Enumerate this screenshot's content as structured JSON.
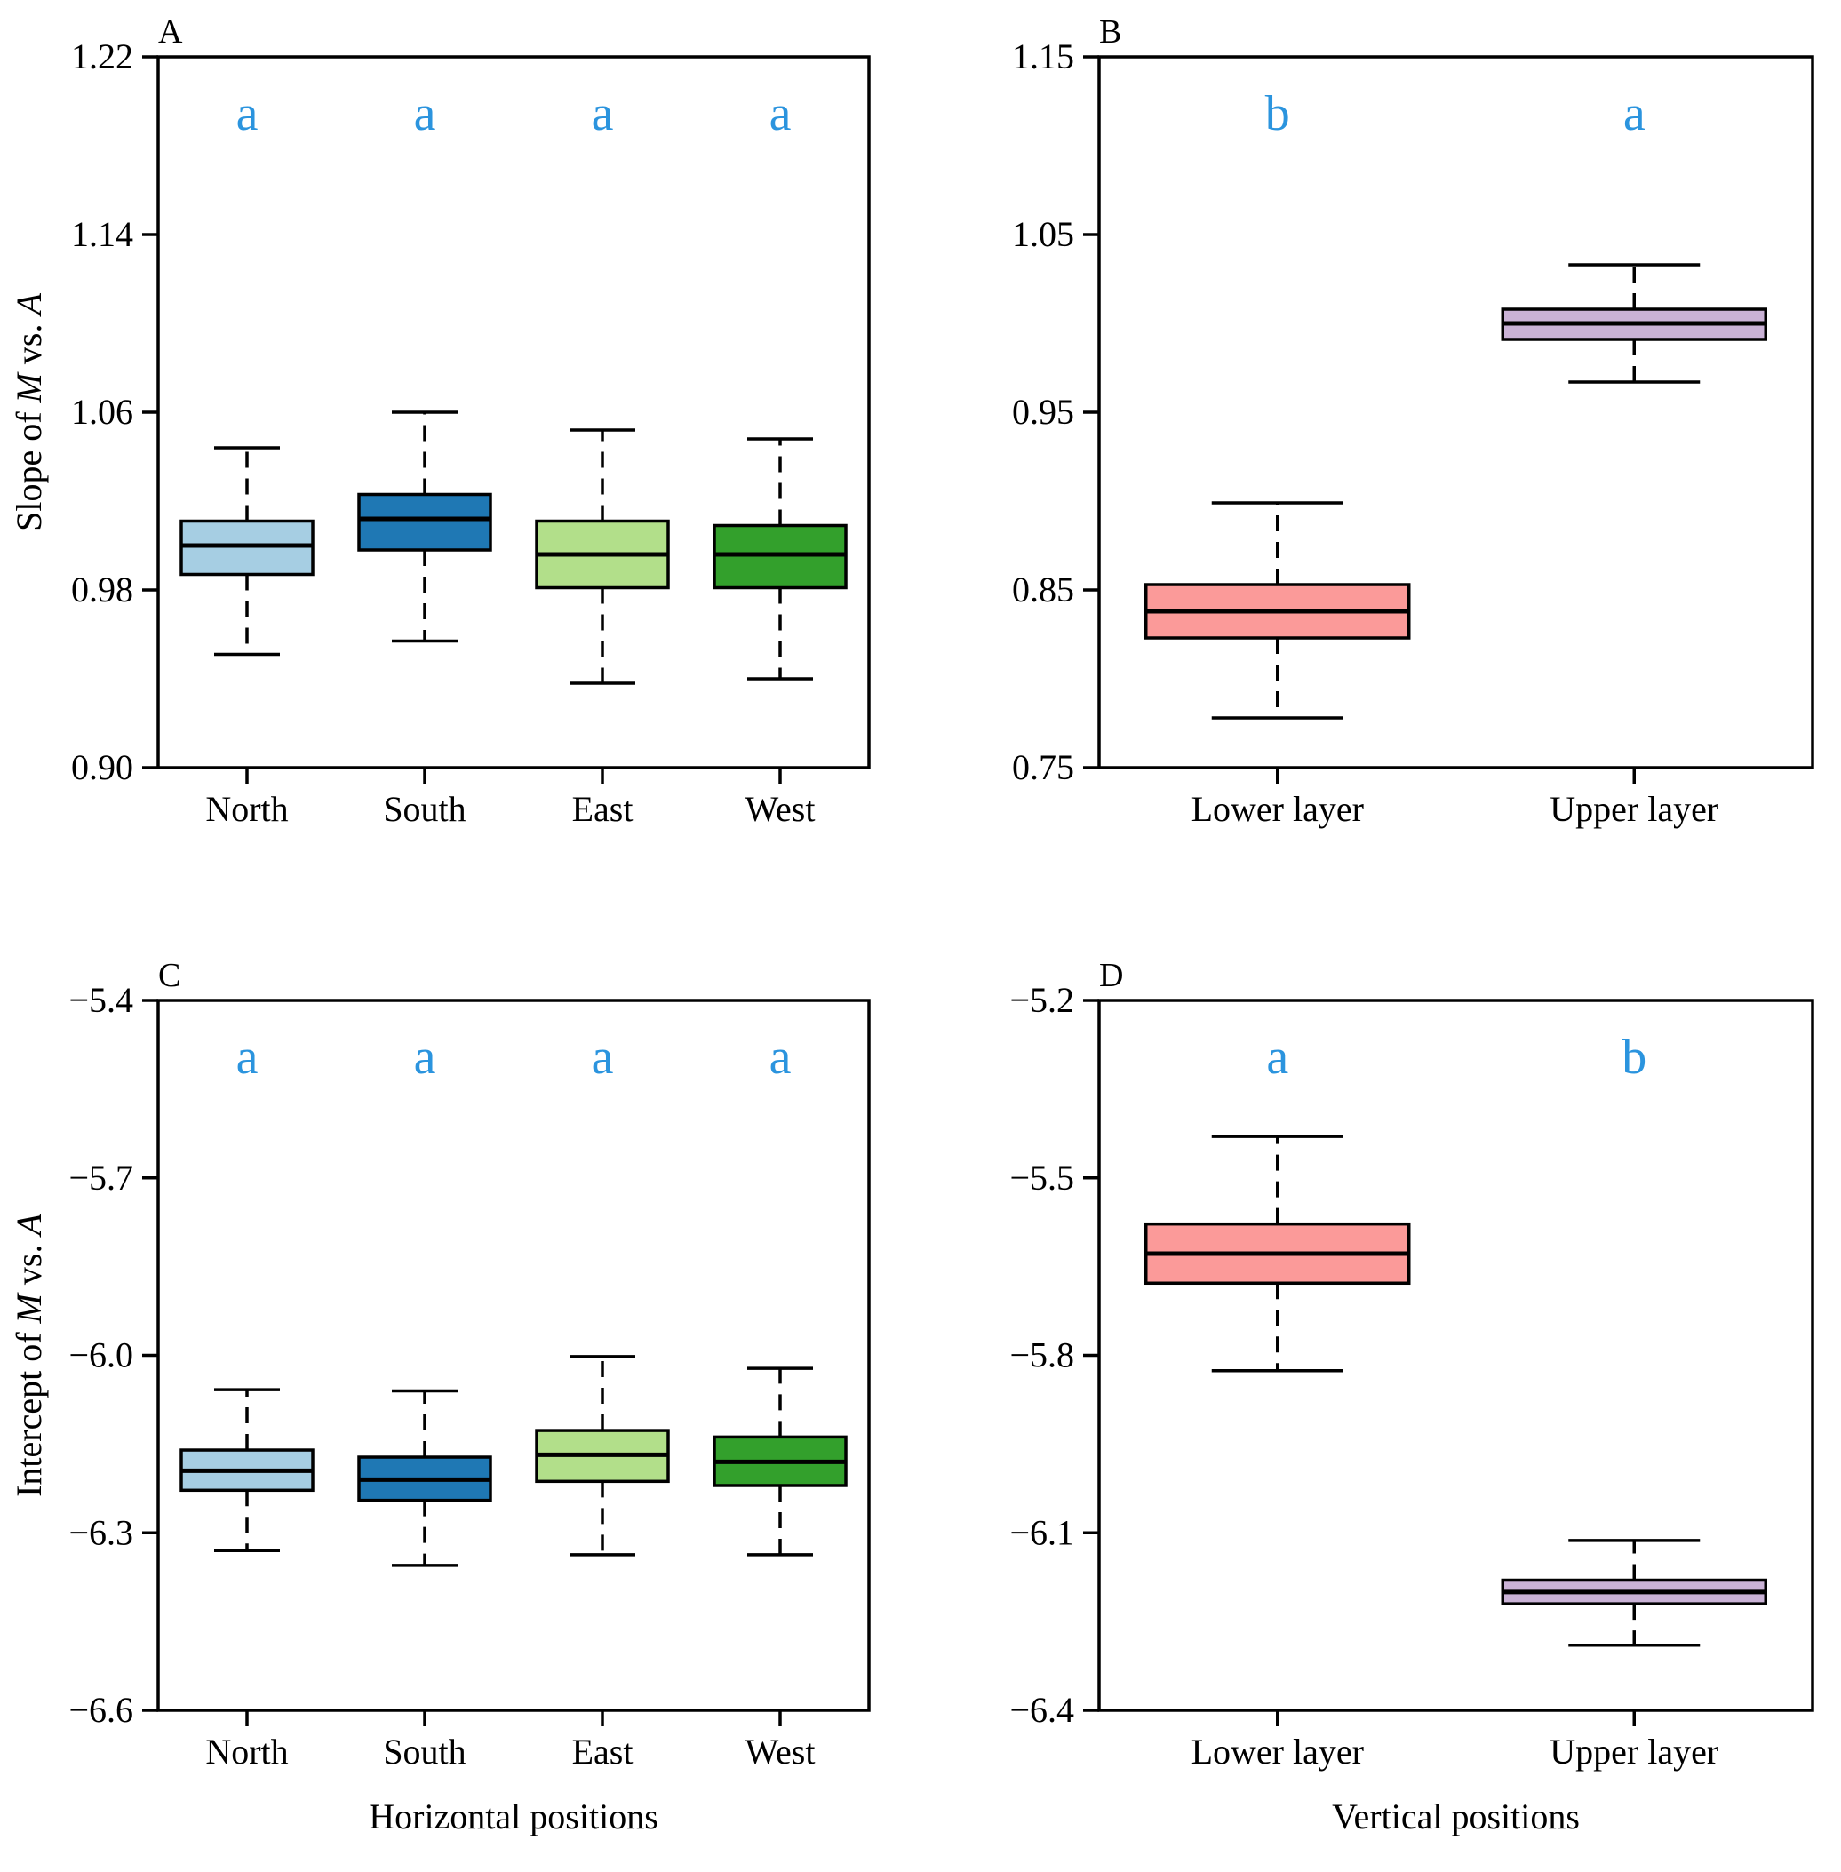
{
  "chart_data": [
    {
      "panel": "A",
      "type": "box",
      "ylabel_prefix": "Slope of ",
      "ylabel_italic_1": "M",
      "ylabel_middle": " vs. ",
      "ylabel_italic_2": "A",
      "ylim": [
        0.9,
        1.22
      ],
      "yticks": [
        "1.22",
        "1.14",
        "1.06",
        "0.98",
        "0.90"
      ],
      "ytick_values": [
        1.22,
        1.14,
        1.06,
        0.98,
        0.9
      ],
      "categories": [
        "North",
        "South",
        "East",
        "West"
      ],
      "letters": [
        "a",
        "a",
        "a",
        "a"
      ],
      "colors": [
        "#a6cee3",
        "#1f78b4",
        "#b2df8a",
        "#33a02c"
      ],
      "boxes": [
        {
          "min": 0.951,
          "q1": 0.987,
          "median": 1.0,
          "q3": 1.011,
          "max": 1.044
        },
        {
          "min": 0.957,
          "q1": 0.998,
          "median": 1.012,
          "q3": 1.023,
          "max": 1.06
        },
        {
          "min": 0.938,
          "q1": 0.981,
          "median": 0.996,
          "q3": 1.011,
          "max": 1.052
        },
        {
          "min": 0.94,
          "q1": 0.981,
          "median": 0.996,
          "q3": 1.009,
          "max": 1.048
        }
      ]
    },
    {
      "panel": "B",
      "type": "box",
      "ylim": [
        0.75,
        1.15
      ],
      "yticks": [
        "1.15",
        "1.05",
        "0.95",
        "0.85",
        "0.75"
      ],
      "ytick_values": [
        1.15,
        1.05,
        0.95,
        0.85,
        0.75
      ],
      "categories": [
        "Lower layer",
        "Upper layer"
      ],
      "letters": [
        "b",
        "a"
      ],
      "colors": [
        "#fb9a99",
        "#cab2d6"
      ],
      "boxes": [
        {
          "min": 0.778,
          "q1": 0.823,
          "median": 0.838,
          "q3": 0.853,
          "max": 0.899
        },
        {
          "min": 0.967,
          "q1": 0.991,
          "median": 1.0,
          "q3": 1.008,
          "max": 1.033
        }
      ]
    },
    {
      "panel": "C",
      "type": "box",
      "ylabel_prefix": "Intercept of ",
      "ylabel_italic_1": "M",
      "ylabel_middle": " vs. ",
      "ylabel_italic_2": "A",
      "xlabel": "Horizontal positions",
      "ylim": [
        -6.6,
        -5.4
      ],
      "yticks": [
        "−5.4",
        "−5.7",
        "−6.0",
        "−6.3",
        "−6.6"
      ],
      "ytick_values": [
        -5.4,
        -5.7,
        -6.0,
        -6.3,
        -6.6
      ],
      "categories": [
        "North",
        "South",
        "East",
        "West"
      ],
      "letters": [
        "a",
        "a",
        "a",
        "a"
      ],
      "colors": [
        "#a6cee3",
        "#1f78b4",
        "#b2df8a",
        "#33a02c"
      ],
      "boxes": [
        {
          "min": -6.33,
          "q1": -6.228,
          "median": -6.195,
          "q3": -6.16,
          "max": -6.058
        },
        {
          "min": -6.355,
          "q1": -6.245,
          "median": -6.21,
          "q3": -6.172,
          "max": -6.06
        },
        {
          "min": -6.337,
          "q1": -6.213,
          "median": -6.168,
          "q3": -6.127,
          "max": -6.002
        },
        {
          "min": -6.337,
          "q1": -6.22,
          "median": -6.18,
          "q3": -6.138,
          "max": -6.022
        }
      ]
    },
    {
      "panel": "D",
      "type": "box",
      "xlabel": "Vertical positions",
      "ylim": [
        -6.4,
        -5.2
      ],
      "yticks": [
        "−5.2",
        "−5.5",
        "−5.8",
        "−6.1",
        "−6.4"
      ],
      "ytick_values": [
        -5.2,
        -5.5,
        -5.8,
        -6.1,
        -6.4
      ],
      "categories": [
        "Lower layer",
        "Upper layer"
      ],
      "letters": [
        "a",
        "b"
      ],
      "colors": [
        "#fb9a99",
        "#cab2d6"
      ],
      "boxes": [
        {
          "min": -5.826,
          "q1": -5.678,
          "median": -5.628,
          "q3": -5.578,
          "max": -5.43
        },
        {
          "min": -6.29,
          "q1": -6.22,
          "median": -6.2,
          "q3": -6.18,
          "max": -6.113
        }
      ]
    }
  ]
}
